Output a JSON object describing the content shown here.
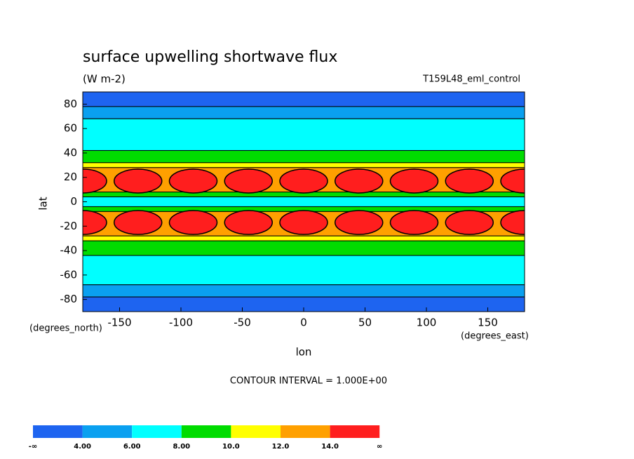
{
  "chart_data": {
    "type": "contour",
    "title": "surface upwelling shortwave flux",
    "subtitle": "(W m-2)",
    "annotation": "T159L48_eml_control",
    "xlabel": "lon",
    "ylabel": "lat",
    "x_units": "(degrees_east)",
    "y_units": "(degrees_north)",
    "footnote": "CONTOUR INTERVAL = 1.000E+00",
    "xlim": [
      -180,
      180
    ],
    "xticks": [
      -150,
      -100,
      -50,
      0,
      50,
      100,
      150
    ],
    "ylim": [
      -90,
      90
    ],
    "yticks": [
      -80,
      -60,
      -40,
      -20,
      0,
      20,
      40,
      60,
      80
    ],
    "bands": {
      "lat_edges": [
        90,
        78,
        68,
        42,
        32,
        28,
        8,
        4,
        -4,
        -8,
        -28,
        -32,
        -44,
        -68,
        -78,
        -90
      ],
      "values": [
        3,
        5,
        7,
        9,
        11,
        13,
        9,
        7,
        9,
        13,
        11,
        9,
        7,
        5,
        3
      ]
    },
    "cells": {
      "lon": [
        -180,
        -135,
        -90,
        -45,
        0,
        45,
        90,
        135,
        180
      ],
      "lat": [
        17,
        -17
      ],
      "value": 15
    },
    "colorbar": {
      "colors": [
        "#1e64f0",
        "#0aa0f0",
        "#00ffff",
        "#00dc00",
        "#ffff00",
        "#ffa000",
        "#ff1e1e"
      ],
      "ticks": [
        {
          "value": 4,
          "label": "4.00"
        },
        {
          "value": 6,
          "label": "6.00"
        },
        {
          "value": 8,
          "label": "8.00"
        },
        {
          "value": 10,
          "label": "10.0"
        },
        {
          "value": 12,
          "label": "12.0"
        },
        {
          "value": 14,
          "label": "14.0"
        }
      ],
      "low_label": "-∞",
      "high_label": "∞"
    }
  }
}
